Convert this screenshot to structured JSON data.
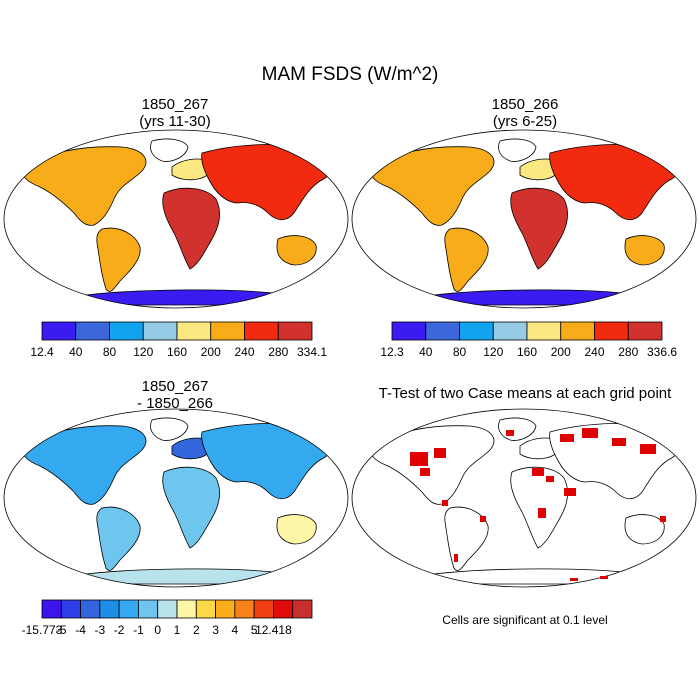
{
  "title": "MAM FSDS (W/m^2)",
  "panels": [
    {
      "title_line1": "1850_267",
      "title_line2": "(yrs 11-30)"
    },
    {
      "title_line1": "1850_266",
      "title_line2": "(yrs 6-25)"
    },
    {
      "title_line1": "1850_267",
      "title_line2": "- 1850_266"
    },
    {
      "title_line1": "T-Test of two Case means at each grid point",
      "title_line2": ""
    }
  ],
  "colorbars": {
    "absolute_1": {
      "labels": [
        "12.4",
        "40",
        "80",
        "120",
        "160",
        "200",
        "240",
        "280",
        "334.1"
      ],
      "colors": [
        "#3a1cf2",
        "#3c66db",
        "#12a3ef",
        "#96cbe6",
        "#fbe880",
        "#f8ac1a",
        "#f22a0f",
        "#d2322d"
      ]
    },
    "absolute_2": {
      "labels": [
        "12.3",
        "40",
        "80",
        "120",
        "160",
        "200",
        "240",
        "280",
        "336.6"
      ],
      "colors": [
        "#3a1cf2",
        "#3c66db",
        "#12a3ef",
        "#96cbe6",
        "#fbe880",
        "#f8ac1a",
        "#f22a0f",
        "#d2322d"
      ]
    },
    "difference": {
      "labels": [
        "-15.773",
        "-5",
        "-4",
        "-3",
        "-2",
        "-1",
        "0",
        "1",
        "2",
        "3",
        "4",
        "5",
        "12.418"
      ],
      "colors": [
        "#3c14ec",
        "#2d3ee9",
        "#3366dd",
        "#1d8ee8",
        "#35a9f0",
        "#6ec6ef",
        "#b8e2ec",
        "#fdf6a6",
        "#fbd848",
        "#fbae1c",
        "#f7811a",
        "#ef3f14",
        "#e10c0a",
        "#c83030"
      ]
    }
  },
  "footnote": "Cells are significant at 0.1 level",
  "ttest_color": "#e00000"
}
